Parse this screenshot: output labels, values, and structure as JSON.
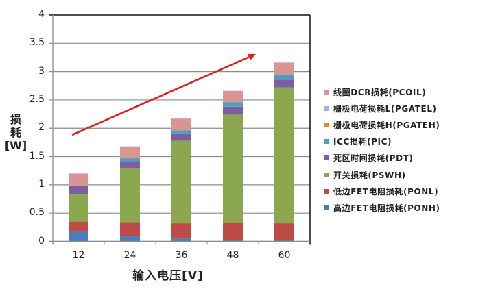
{
  "chart_data": {
    "type": "bar",
    "stacked": true,
    "title": "",
    "xlabel": "输入电压[V]",
    "ylabel_lines": [
      "损",
      "耗",
      "[W]"
    ],
    "ylabel": "损耗[W]",
    "ylim": [
      0,
      4
    ],
    "yticks": [
      "0",
      "0.5",
      "1",
      "1.5",
      "2",
      "2.5",
      "3",
      "3.5",
      "4"
    ],
    "ytick_values": [
      0,
      0.5,
      1,
      1.5,
      2,
      2.5,
      3,
      3.5,
      4
    ],
    "grid": true,
    "legend_position": "right",
    "categories": [
      "12",
      "24",
      "36",
      "48",
      "60"
    ],
    "series": [
      {
        "name": "高边FET电阻损耗(PONH)",
        "color": "#4a7ebb",
        "values": [
          0.17,
          0.09,
          0.05,
          0.03,
          0.03
        ]
      },
      {
        "name": "低边FET电阻损耗(PONL)",
        "color": "#be4b48",
        "values": [
          0.18,
          0.25,
          0.27,
          0.3,
          0.29
        ]
      },
      {
        "name": "开关损耗(PSWH)",
        "color": "#8ba84e",
        "values": [
          0.48,
          0.95,
          1.46,
          1.91,
          2.4
        ]
      },
      {
        "name": "死区时间损耗(PDT)",
        "color": "#7d5fa0",
        "values": [
          0.15,
          0.13,
          0.13,
          0.14,
          0.14
        ]
      },
      {
        "name": "ICC损耗(PIC)",
        "color": "#4aa0bd",
        "values": [
          0.01,
          0.05,
          0.05,
          0.08,
          0.08
        ]
      },
      {
        "name": "栅极电荷损耗H(PGATEH)",
        "color": "#e8883a",
        "values": [
          0,
          0,
          0,
          0,
          0
        ]
      },
      {
        "name": "栅极电荷损耗L(PGATEL)",
        "color": "#9fb6dc",
        "values": [
          0,
          0,
          0,
          0,
          0
        ]
      },
      {
        "name": "线圈DCR损耗(PCOIL)",
        "color": "#d99594",
        "values": [
          0.21,
          0.21,
          0.21,
          0.2,
          0.22
        ]
      }
    ],
    "totals": [
      1.2,
      1.68,
      2.17,
      2.66,
      3.16
    ],
    "annotations": [
      {
        "type": "arrow",
        "color": "#e02020",
        "description": "upward trend arrow",
        "from": [
          105,
          197
        ],
        "to": [
          373,
          79
        ]
      }
    ]
  },
  "legend": {
    "items": [
      {
        "label": "线圈DCR损耗(PCOIL)",
        "color": "#d99594"
      },
      {
        "label": "栅极电荷损耗L(PGATEL)",
        "color": "#9fb6dc"
      },
      {
        "label": "栅极电荷损耗H(PGATEH)",
        "color": "#e8883a"
      },
      {
        "label": "ICC损耗(PIC)",
        "color": "#4aa0bd"
      },
      {
        "label": "死区时间损耗(PDT)",
        "color": "#7d5fa0"
      },
      {
        "label": "开关损耗(PSWH)",
        "color": "#8ba84e"
      },
      {
        "label": "低边FET电阻损耗(PONL)",
        "color": "#be4b48"
      },
      {
        "label": "高边FET电阻损耗(PONH)",
        "color": "#4a7ebb"
      }
    ]
  },
  "axes": {
    "y_label_line1": "损",
    "y_label_line2": "耗",
    "y_label_line3": "[W]",
    "x_label": "输入电压[V]"
  }
}
